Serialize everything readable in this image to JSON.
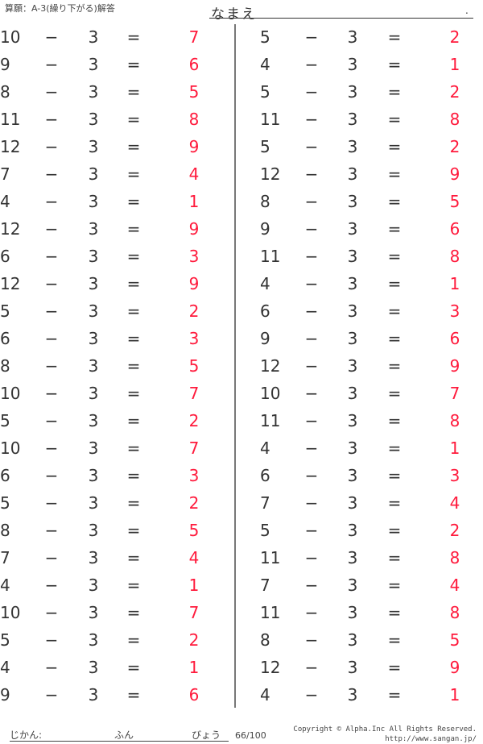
{
  "header": {
    "title": "算願：A-3(繰り下がる)解答",
    "name_label": "なまえ",
    "name_dot": "."
  },
  "colors": {
    "answer": "#ff1a3c",
    "text": "#333333"
  },
  "operator": "−",
  "equals": "=",
  "left": [
    {
      "a": "10",
      "b": "3",
      "ans": "7"
    },
    {
      "a": "9",
      "b": "3",
      "ans": "6"
    },
    {
      "a": "8",
      "b": "3",
      "ans": "5"
    },
    {
      "a": "11",
      "b": "3",
      "ans": "8"
    },
    {
      "a": "12",
      "b": "3",
      "ans": "9"
    },
    {
      "a": "7",
      "b": "3",
      "ans": "4"
    },
    {
      "a": "4",
      "b": "3",
      "ans": "1"
    },
    {
      "a": "12",
      "b": "3",
      "ans": "9"
    },
    {
      "a": "6",
      "b": "3",
      "ans": "3"
    },
    {
      "a": "12",
      "b": "3",
      "ans": "9"
    },
    {
      "a": "5",
      "b": "3",
      "ans": "2"
    },
    {
      "a": "6",
      "b": "3",
      "ans": "3"
    },
    {
      "a": "8",
      "b": "3",
      "ans": "5"
    },
    {
      "a": "10",
      "b": "3",
      "ans": "7"
    },
    {
      "a": "5",
      "b": "3",
      "ans": "2"
    },
    {
      "a": "10",
      "b": "3",
      "ans": "7"
    },
    {
      "a": "6",
      "b": "3",
      "ans": "3"
    },
    {
      "a": "5",
      "b": "3",
      "ans": "2"
    },
    {
      "a": "8",
      "b": "3",
      "ans": "5"
    },
    {
      "a": "7",
      "b": "3",
      "ans": "4"
    },
    {
      "a": "4",
      "b": "3",
      "ans": "1"
    },
    {
      "a": "10",
      "b": "3",
      "ans": "7"
    },
    {
      "a": "5",
      "b": "3",
      "ans": "2"
    },
    {
      "a": "4",
      "b": "3",
      "ans": "1"
    },
    {
      "a": "9",
      "b": "3",
      "ans": "6"
    }
  ],
  "right": [
    {
      "a": "5",
      "b": "3",
      "ans": "2"
    },
    {
      "a": "4",
      "b": "3",
      "ans": "1"
    },
    {
      "a": "5",
      "b": "3",
      "ans": "2"
    },
    {
      "a": "11",
      "b": "3",
      "ans": "8"
    },
    {
      "a": "5",
      "b": "3",
      "ans": "2"
    },
    {
      "a": "12",
      "b": "3",
      "ans": "9"
    },
    {
      "a": "8",
      "b": "3",
      "ans": "5"
    },
    {
      "a": "9",
      "b": "3",
      "ans": "6"
    },
    {
      "a": "11",
      "b": "3",
      "ans": "8"
    },
    {
      "a": "4",
      "b": "3",
      "ans": "1"
    },
    {
      "a": "6",
      "b": "3",
      "ans": "3"
    },
    {
      "a": "9",
      "b": "3",
      "ans": "6"
    },
    {
      "a": "12",
      "b": "3",
      "ans": "9"
    },
    {
      "a": "10",
      "b": "3",
      "ans": "7"
    },
    {
      "a": "11",
      "b": "3",
      "ans": "8"
    },
    {
      "a": "4",
      "b": "3",
      "ans": "1"
    },
    {
      "a": "6",
      "b": "3",
      "ans": "3"
    },
    {
      "a": "7",
      "b": "3",
      "ans": "4"
    },
    {
      "a": "5",
      "b": "3",
      "ans": "2"
    },
    {
      "a": "11",
      "b": "3",
      "ans": "8"
    },
    {
      "a": "7",
      "b": "3",
      "ans": "4"
    },
    {
      "a": "11",
      "b": "3",
      "ans": "8"
    },
    {
      "a": "8",
      "b": "3",
      "ans": "5"
    },
    {
      "a": "12",
      "b": "3",
      "ans": "9"
    },
    {
      "a": "4",
      "b": "3",
      "ans": "1"
    }
  ],
  "footer": {
    "time_label": "じかん:",
    "minutes_label": "ふん",
    "seconds_label": "びょう",
    "score": "66/100",
    "copyright": "Copyright © Alpha.Inc All Rights Reserved.",
    "url": "http://www.sangan.jp/"
  }
}
